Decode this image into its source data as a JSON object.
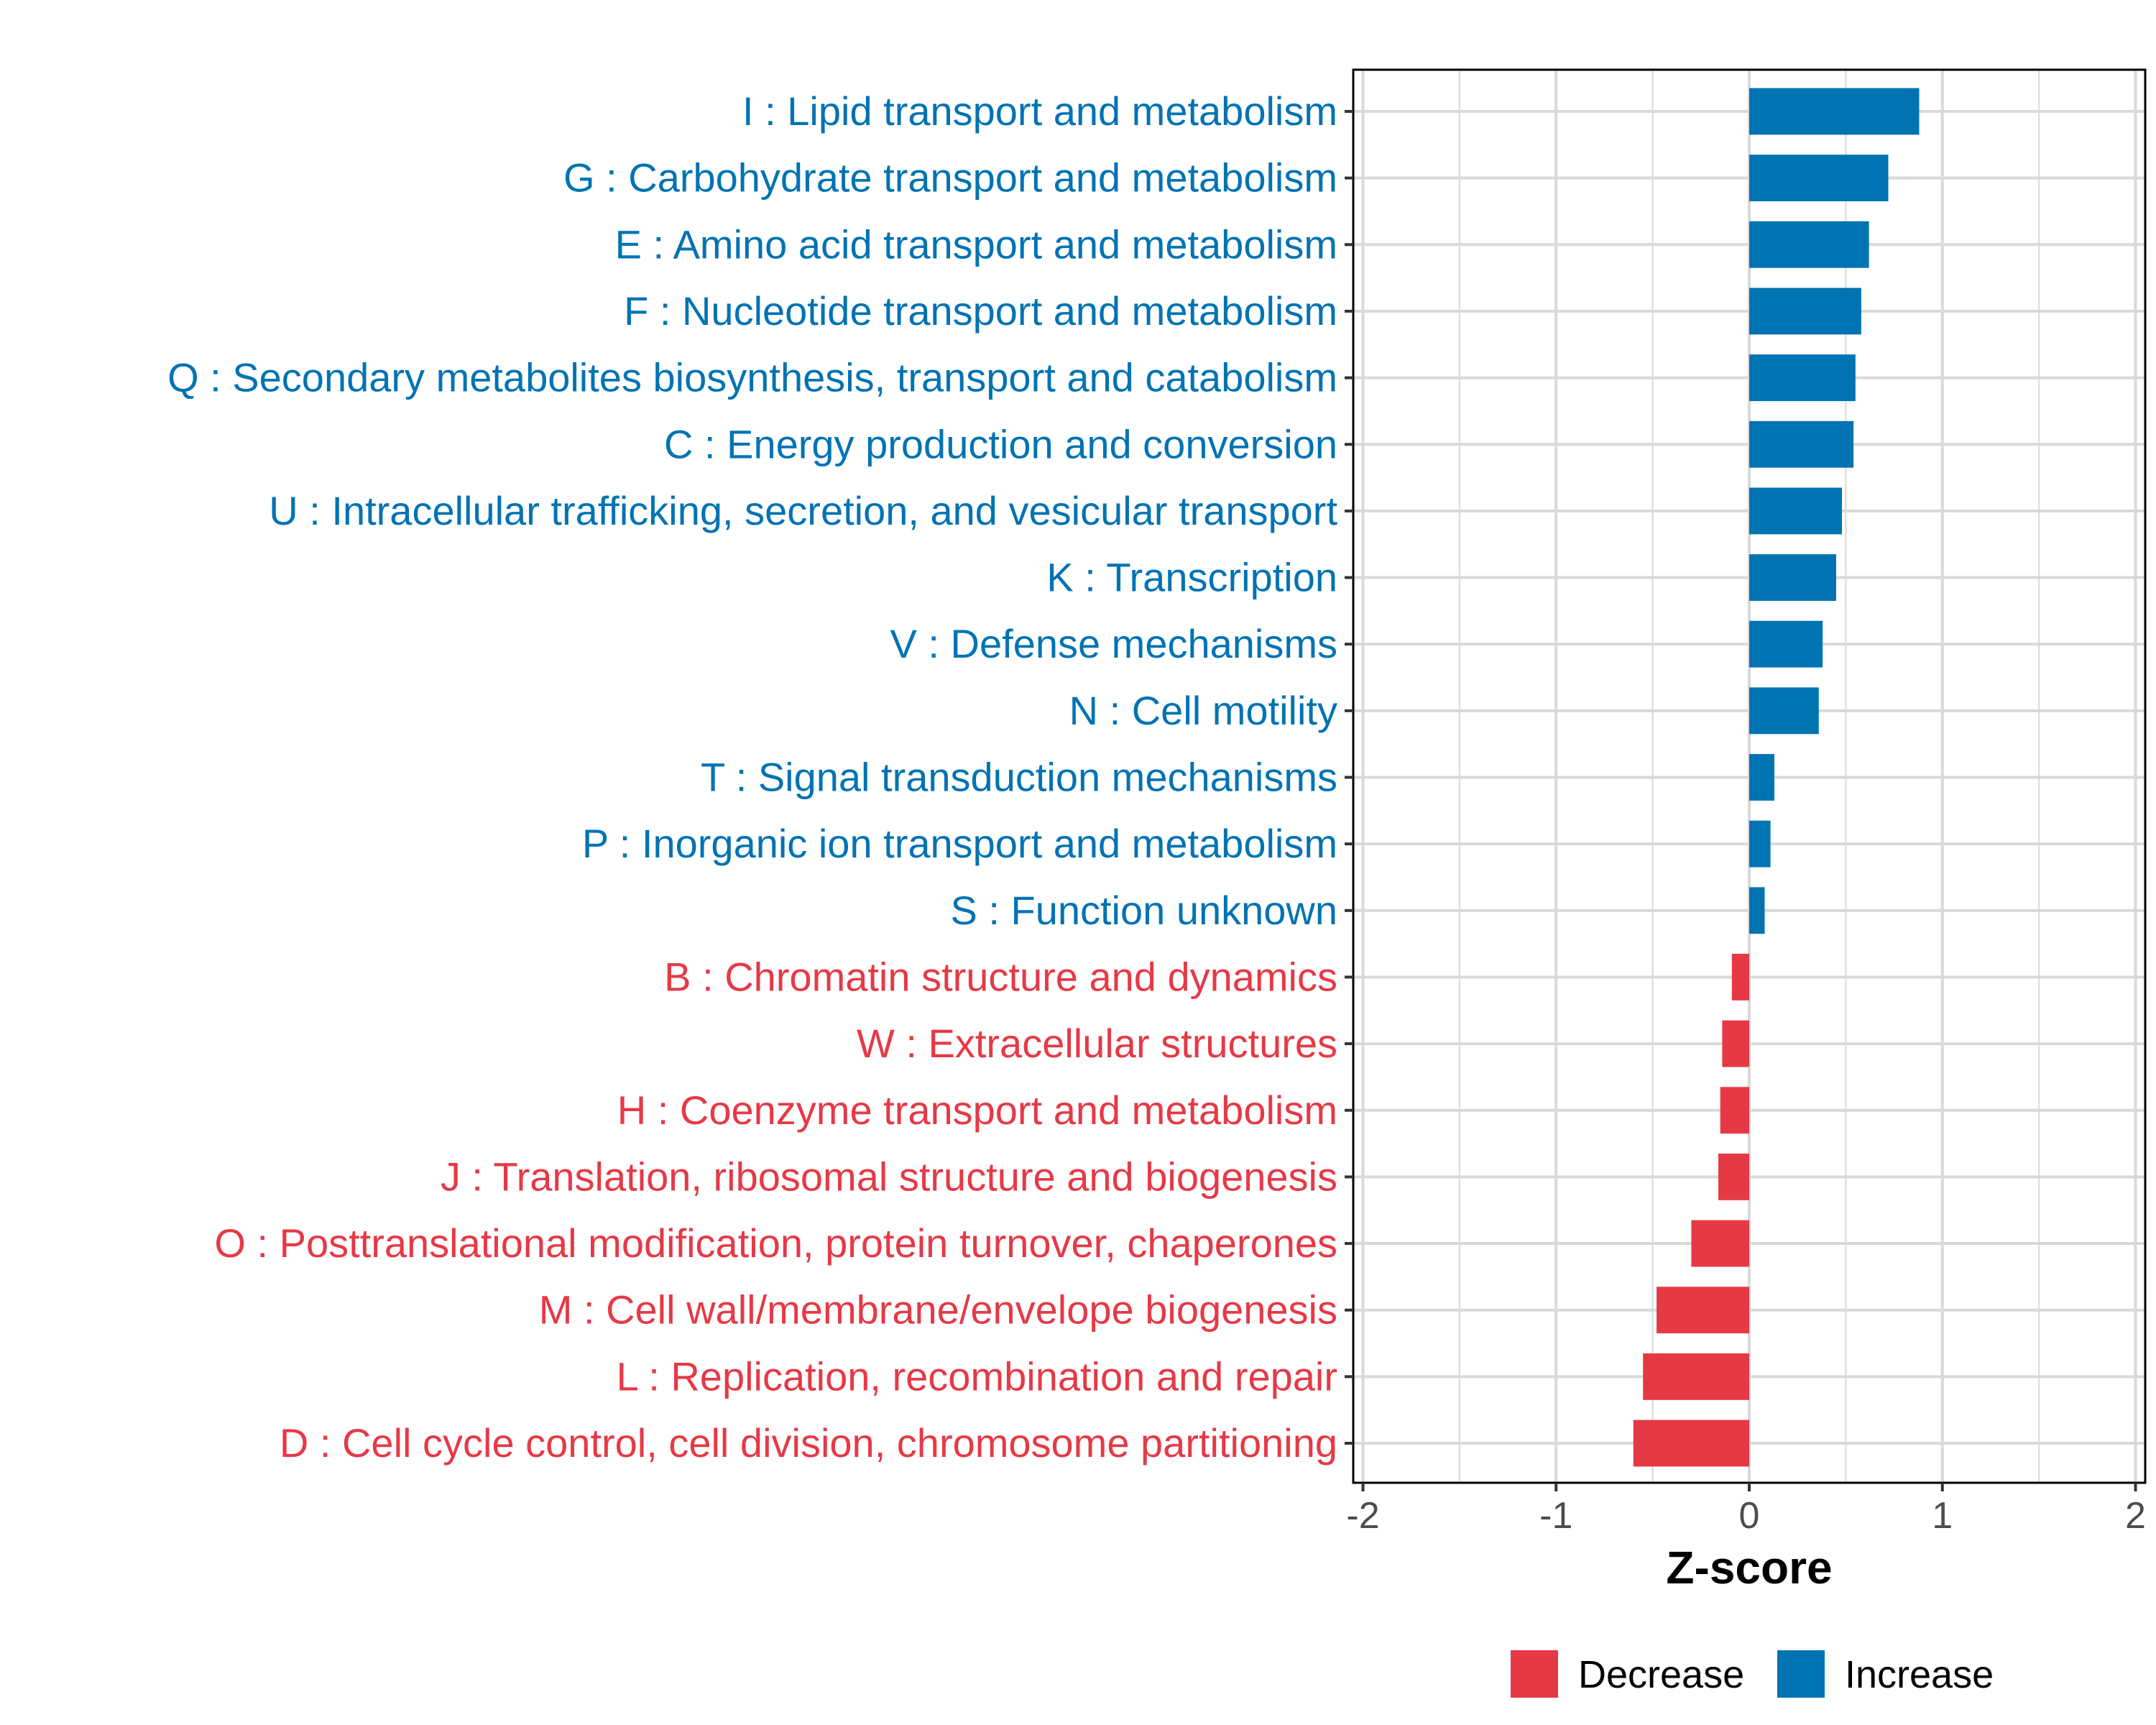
{
  "chart_data": {
    "type": "bar",
    "orientation": "horizontal",
    "xlabel": "Z-score",
    "ylabel": "",
    "xlim": [
      -2,
      2
    ],
    "xticks": [
      -2,
      -1,
      0,
      1,
      2
    ],
    "tick_labels": [
      "-2",
      "-1",
      "0",
      "1",
      "2"
    ],
    "grid": true,
    "legend_placement": "bottom",
    "colors": {
      "Increase": "#0073b3",
      "Decrease": "#e63946"
    },
    "legend": [
      {
        "name": "Decrease",
        "color": "#e63946"
      },
      {
        "name": "Increase",
        "color": "#0073b3"
      }
    ],
    "categories": [
      "I : Lipid transport and metabolism",
      "G : Carbohydrate transport and metabolism",
      "E : Amino acid transport and metabolism",
      "F : Nucleotide transport and metabolism",
      "Q : Secondary metabolites biosynthesis, transport and catabolism",
      "C : Energy production and conversion",
      "U : Intracellular trafficking, secretion, and vesicular transport",
      "K : Transcription",
      "V : Defense mechanisms",
      "N : Cell motility",
      "T : Signal transduction mechanisms",
      "P : Inorganic ion transport and metabolism",
      "S : Function unknown",
      "B : Chromatin structure and dynamics",
      "W : Extracellular structures",
      "H : Coenzyme transport and metabolism",
      "J : Translation, ribosomal structure and biogenesis",
      "O : Posttranslational modification, protein turnover, chaperones",
      "M : Cell wall/membrane/envelope biogenesis",
      "L : Replication, recombination and repair",
      "D : Cell cycle control, cell division, chromosome partitioning"
    ],
    "values": [
      0.88,
      0.72,
      0.62,
      0.58,
      0.55,
      0.54,
      0.48,
      0.45,
      0.38,
      0.36,
      0.13,
      0.11,
      0.08,
      -0.09,
      -0.14,
      -0.15,
      -0.16,
      -0.3,
      -0.48,
      -0.55,
      -0.6
    ],
    "groups": [
      "Increase",
      "Increase",
      "Increase",
      "Increase",
      "Increase",
      "Increase",
      "Increase",
      "Increase",
      "Increase",
      "Increase",
      "Increase",
      "Increase",
      "Increase",
      "Decrease",
      "Decrease",
      "Decrease",
      "Decrease",
      "Decrease",
      "Decrease",
      "Decrease",
      "Decrease"
    ]
  }
}
